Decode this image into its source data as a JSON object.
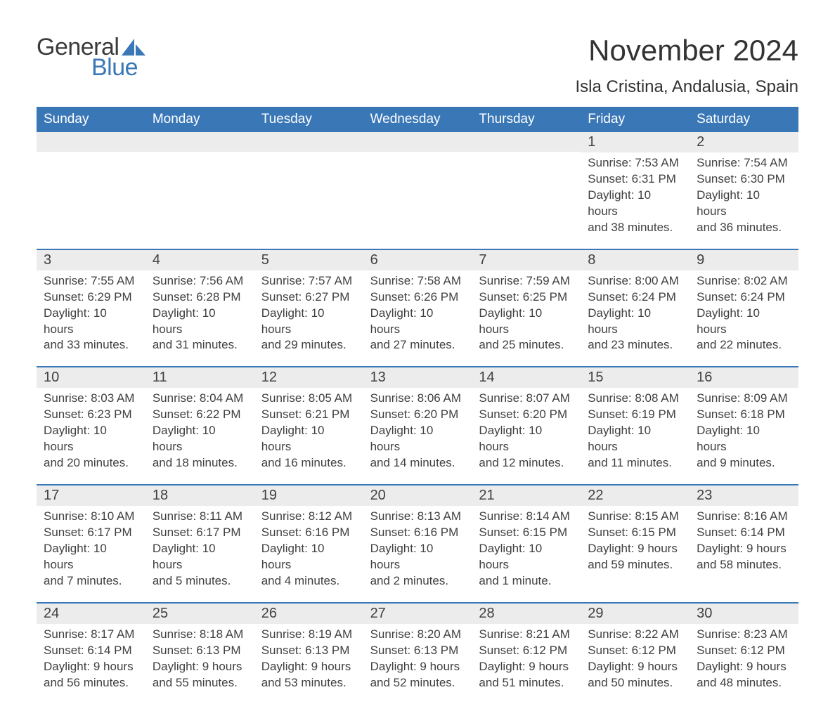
{
  "logo": {
    "text_general": "General",
    "text_blue": "Blue"
  },
  "header": {
    "month_title": "November 2024",
    "location": "Isla Cristina, Andalusia, Spain"
  },
  "colors": {
    "brand_blue": "#3a77b7",
    "header_text": "#ffffff",
    "daynum_bg": "#ececec",
    "body_text": "#404040",
    "page_bg": "#ffffff",
    "row_border": "#3a77b7"
  },
  "typography": {
    "month_title_pt": 42,
    "location_pt": 24,
    "day_header_pt": 19,
    "daynum_pt": 20,
    "body_pt": 17,
    "family": "Arial"
  },
  "calendar": {
    "type": "table",
    "day_headers": [
      "Sunday",
      "Monday",
      "Tuesday",
      "Wednesday",
      "Thursday",
      "Friday",
      "Saturday"
    ],
    "labels": {
      "sunrise": "Sunrise:",
      "sunset": "Sunset:",
      "daylight": "Daylight:"
    },
    "weeks": [
      [
        null,
        null,
        null,
        null,
        null,
        {
          "day": "1",
          "sunrise": "7:53 AM",
          "sunset": "6:31 PM",
          "daylight_l1": "10 hours",
          "daylight_l2": "and 38 minutes."
        },
        {
          "day": "2",
          "sunrise": "7:54 AM",
          "sunset": "6:30 PM",
          "daylight_l1": "10 hours",
          "daylight_l2": "and 36 minutes."
        }
      ],
      [
        {
          "day": "3",
          "sunrise": "7:55 AM",
          "sunset": "6:29 PM",
          "daylight_l1": "10 hours",
          "daylight_l2": "and 33 minutes."
        },
        {
          "day": "4",
          "sunrise": "7:56 AM",
          "sunset": "6:28 PM",
          "daylight_l1": "10 hours",
          "daylight_l2": "and 31 minutes."
        },
        {
          "day": "5",
          "sunrise": "7:57 AM",
          "sunset": "6:27 PM",
          "daylight_l1": "10 hours",
          "daylight_l2": "and 29 minutes."
        },
        {
          "day": "6",
          "sunrise": "7:58 AM",
          "sunset": "6:26 PM",
          "daylight_l1": "10 hours",
          "daylight_l2": "and 27 minutes."
        },
        {
          "day": "7",
          "sunrise": "7:59 AM",
          "sunset": "6:25 PM",
          "daylight_l1": "10 hours",
          "daylight_l2": "and 25 minutes."
        },
        {
          "day": "8",
          "sunrise": "8:00 AM",
          "sunset": "6:24 PM",
          "daylight_l1": "10 hours",
          "daylight_l2": "and 23 minutes."
        },
        {
          "day": "9",
          "sunrise": "8:02 AM",
          "sunset": "6:24 PM",
          "daylight_l1": "10 hours",
          "daylight_l2": "and 22 minutes."
        }
      ],
      [
        {
          "day": "10",
          "sunrise": "8:03 AM",
          "sunset": "6:23 PM",
          "daylight_l1": "10 hours",
          "daylight_l2": "and 20 minutes."
        },
        {
          "day": "11",
          "sunrise": "8:04 AM",
          "sunset": "6:22 PM",
          "daylight_l1": "10 hours",
          "daylight_l2": "and 18 minutes."
        },
        {
          "day": "12",
          "sunrise": "8:05 AM",
          "sunset": "6:21 PM",
          "daylight_l1": "10 hours",
          "daylight_l2": "and 16 minutes."
        },
        {
          "day": "13",
          "sunrise": "8:06 AM",
          "sunset": "6:20 PM",
          "daylight_l1": "10 hours",
          "daylight_l2": "and 14 minutes."
        },
        {
          "day": "14",
          "sunrise": "8:07 AM",
          "sunset": "6:20 PM",
          "daylight_l1": "10 hours",
          "daylight_l2": "and 12 minutes."
        },
        {
          "day": "15",
          "sunrise": "8:08 AM",
          "sunset": "6:19 PM",
          "daylight_l1": "10 hours",
          "daylight_l2": "and 11 minutes."
        },
        {
          "day": "16",
          "sunrise": "8:09 AM",
          "sunset": "6:18 PM",
          "daylight_l1": "10 hours",
          "daylight_l2": "and 9 minutes."
        }
      ],
      [
        {
          "day": "17",
          "sunrise": "8:10 AM",
          "sunset": "6:17 PM",
          "daylight_l1": "10 hours",
          "daylight_l2": "and 7 minutes."
        },
        {
          "day": "18",
          "sunrise": "8:11 AM",
          "sunset": "6:17 PM",
          "daylight_l1": "10 hours",
          "daylight_l2": "and 5 minutes."
        },
        {
          "day": "19",
          "sunrise": "8:12 AM",
          "sunset": "6:16 PM",
          "daylight_l1": "10 hours",
          "daylight_l2": "and 4 minutes."
        },
        {
          "day": "20",
          "sunrise": "8:13 AM",
          "sunset": "6:16 PM",
          "daylight_l1": "10 hours",
          "daylight_l2": "and 2 minutes."
        },
        {
          "day": "21",
          "sunrise": "8:14 AM",
          "sunset": "6:15 PM",
          "daylight_l1": "10 hours",
          "daylight_l2": "and 1 minute."
        },
        {
          "day": "22",
          "sunrise": "8:15 AM",
          "sunset": "6:15 PM",
          "daylight_l1": "9 hours",
          "daylight_l2": "and 59 minutes."
        },
        {
          "day": "23",
          "sunrise": "8:16 AM",
          "sunset": "6:14 PM",
          "daylight_l1": "9 hours",
          "daylight_l2": "and 58 minutes."
        }
      ],
      [
        {
          "day": "24",
          "sunrise": "8:17 AM",
          "sunset": "6:14 PM",
          "daylight_l1": "9 hours",
          "daylight_l2": "and 56 minutes."
        },
        {
          "day": "25",
          "sunrise": "8:18 AM",
          "sunset": "6:13 PM",
          "daylight_l1": "9 hours",
          "daylight_l2": "and 55 minutes."
        },
        {
          "day": "26",
          "sunrise": "8:19 AM",
          "sunset": "6:13 PM",
          "daylight_l1": "9 hours",
          "daylight_l2": "and 53 minutes."
        },
        {
          "day": "27",
          "sunrise": "8:20 AM",
          "sunset": "6:13 PM",
          "daylight_l1": "9 hours",
          "daylight_l2": "and 52 minutes."
        },
        {
          "day": "28",
          "sunrise": "8:21 AM",
          "sunset": "6:12 PM",
          "daylight_l1": "9 hours",
          "daylight_l2": "and 51 minutes."
        },
        {
          "day": "29",
          "sunrise": "8:22 AM",
          "sunset": "6:12 PM",
          "daylight_l1": "9 hours",
          "daylight_l2": "and 50 minutes."
        },
        {
          "day": "30",
          "sunrise": "8:23 AM",
          "sunset": "6:12 PM",
          "daylight_l1": "9 hours",
          "daylight_l2": "and 48 minutes."
        }
      ]
    ]
  }
}
